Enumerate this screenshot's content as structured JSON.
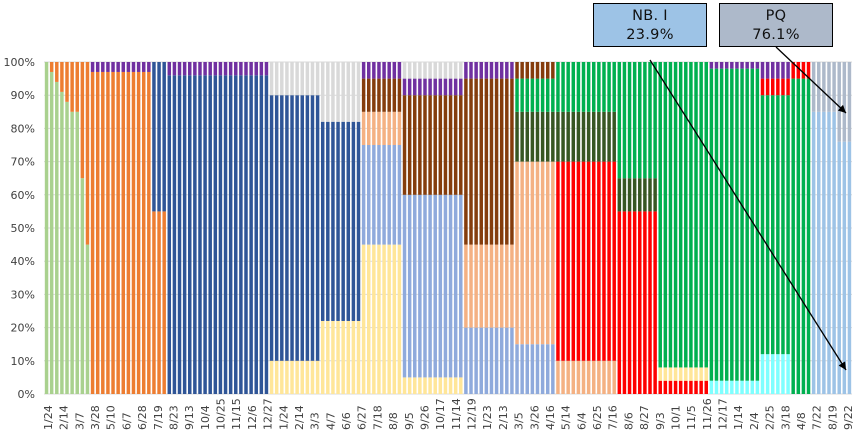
{
  "chart_data": {
    "type": "bar",
    "stacked": true,
    "percent_stacked": true,
    "title": "",
    "xlabel": "",
    "ylabel": "",
    "ylim": [
      0,
      100
    ],
    "y_ticks": [
      "0%",
      "10%",
      "20%",
      "30%",
      "40%",
      "50%",
      "60%",
      "70%",
      "80%",
      "90%",
      "100%"
    ],
    "x_tick_labels": [
      "1/24",
      "2/14",
      "3/7",
      "3/28",
      "5/10",
      "6/7",
      "6/28",
      "7/19",
      "8/23",
      "9/13",
      "10/4",
      "10/25",
      "11/15",
      "12/6",
      "12/27",
      "1/24",
      "2/14",
      "3/3",
      "4/7",
      "6/6",
      "6/27",
      "7/18",
      "8/8",
      "9/5",
      "9/26",
      "10/17",
      "11/14",
      "12/19",
      "1/23",
      "2/13",
      "3/5",
      "3/26",
      "4/16",
      "5/14",
      "6/4",
      "6/25",
      "7/16",
      "8/6",
      "8/27",
      "9/3",
      "10/1",
      "11/5",
      "11/26",
      "12/17",
      "1/14",
      "2/4",
      "2/25",
      "3/18",
      "4/8",
      "7/22",
      "8/19",
      "9/22"
    ],
    "series_colors": {
      "lineage_a": "#a9d18e",
      "lineage_b": "#ed7d31",
      "lineage_c": "#2f5597",
      "lineage_d": "#d9d9d9",
      "lineage_e": "#ffe699",
      "lineage_f": "#8faadc",
      "lineage_g": "#843c0c",
      "lineage_h": "#f4b183",
      "lineage_i": "#ff0000",
      "lineage_j": "#375623",
      "lineage_k": "#00b050",
      "lineage_l": "#7030a0",
      "lineage_m": "#7fffff",
      "lineage_n": "#adb9ca",
      "lineage_o": "#9dc3e6"
    },
    "annotations": [
      {
        "label": "NB. I",
        "value": "23.9%"
      },
      {
        "label": "PQ",
        "value": "76.1%"
      }
    ]
  }
}
